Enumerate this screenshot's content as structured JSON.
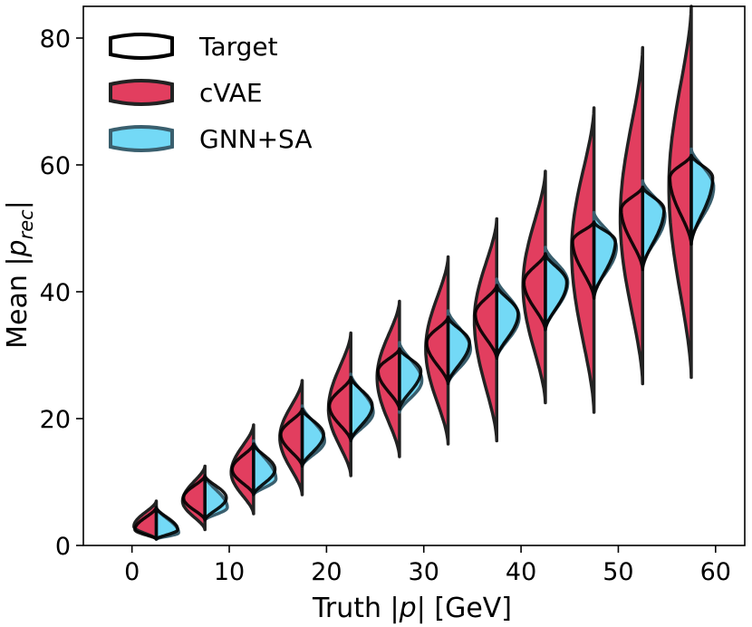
{
  "chart_data": {
    "type": "violin",
    "xlabel_parts": [
      "Truth |",
      "p",
      "| [GeV]"
    ],
    "ylabel_parts": [
      "Mean |",
      "p",
      "rec",
      "|"
    ],
    "xlim": [
      -5,
      63
    ],
    "ylim": [
      0,
      85
    ],
    "xticks": [
      0,
      10,
      20,
      30,
      40,
      50,
      60
    ],
    "yticks": [
      0,
      20,
      40,
      60,
      80
    ],
    "legend": {
      "placement": "top-left",
      "entries": [
        {
          "label": "Target",
          "fill": "#ffffff",
          "stroke": "#000000"
        },
        {
          "label": "cVAE",
          "fill": "#dc143c",
          "stroke": "#222222"
        },
        {
          "label": "GNN+SA",
          "fill": "#5ad2f4",
          "stroke": "#3a5f6e"
        }
      ]
    },
    "colors": {
      "target": "#000000",
      "cvae": "#dc143c",
      "gnn": "#5ad2f4",
      "gnn_edge": "#3a5f6e"
    },
    "violins": [
      {
        "x": 2.5,
        "cvae": {
          "min": 1.0,
          "max": 7.0,
          "mode": 3.0
        },
        "target": {
          "min": 1.0,
          "max": 6.0,
          "mode": 2.5
        },
        "gnn": {
          "min": 1.0,
          "max": 6.0,
          "mode": 2.0
        }
      },
      {
        "x": 7.5,
        "cvae": {
          "min": 2.5,
          "max": 12.5,
          "mode": 7.0
        },
        "target": {
          "min": 4.0,
          "max": 11.0,
          "mode": 7.5
        },
        "gnn": {
          "min": 4.0,
          "max": 11.0,
          "mode": 6.0
        }
      },
      {
        "x": 12.5,
        "cvae": {
          "min": 5.0,
          "max": 19.0,
          "mode": 11.5
        },
        "target": {
          "min": 8.0,
          "max": 16.0,
          "mode": 12.0
        },
        "gnn": {
          "min": 8.0,
          "max": 16.5,
          "mode": 10.5
        }
      },
      {
        "x": 17.5,
        "cvae": {
          "min": 8.0,
          "max": 26.0,
          "mode": 17.0
        },
        "target": {
          "min": 12.5,
          "max": 21.5,
          "mode": 17.5
        },
        "gnn": {
          "min": 12.5,
          "max": 22.0,
          "mode": 16.5
        }
      },
      {
        "x": 22.5,
        "cvae": {
          "min": 11.0,
          "max": 33.5,
          "mode": 21.5
        },
        "target": {
          "min": 16.5,
          "max": 26.5,
          "mode": 22.0
        },
        "gnn": {
          "min": 16.5,
          "max": 27.0,
          "mode": 21.0
        }
      },
      {
        "x": 27.5,
        "cvae": {
          "min": 14.0,
          "max": 38.5,
          "mode": 26.5
        },
        "target": {
          "min": 21.5,
          "max": 31.0,
          "mode": 27.5
        },
        "gnn": {
          "min": 21.0,
          "max": 32.0,
          "mode": 26.0
        }
      },
      {
        "x": 32.5,
        "cvae": {
          "min": 16.0,
          "max": 45.5,
          "mode": 31.0
        },
        "target": {
          "min": 25.5,
          "max": 36.0,
          "mode": 32.0
        },
        "gnn": {
          "min": 25.5,
          "max": 37.0,
          "mode": 31.0
        }
      },
      {
        "x": 37.5,
        "cvae": {
          "min": 16.5,
          "max": 51.5,
          "mode": 35.5
        },
        "target": {
          "min": 29.5,
          "max": 41.0,
          "mode": 36.5
        },
        "gnn": {
          "min": 29.5,
          "max": 42.0,
          "mode": 36.0
        }
      },
      {
        "x": 42.5,
        "cvae": {
          "min": 22.5,
          "max": 59.0,
          "mode": 41.0
        },
        "target": {
          "min": 34.0,
          "max": 46.0,
          "mode": 41.5
        },
        "gnn": {
          "min": 34.0,
          "max": 47.0,
          "mode": 41.5
        }
      },
      {
        "x": 47.5,
        "cvae": {
          "min": 21.0,
          "max": 69.0,
          "mode": 46.5
        },
        "target": {
          "min": 39.0,
          "max": 51.0,
          "mode": 48.0
        },
        "gnn": {
          "min": 39.5,
          "max": 52.5,
          "mode": 47.0
        }
      },
      {
        "x": 52.5,
        "cvae": {
          "min": 25.5,
          "max": 78.5,
          "mode": 51.5
        },
        "target": {
          "min": 43.5,
          "max": 56.5,
          "mode": 53.0
        },
        "gnn": {
          "min": 44.0,
          "max": 57.5,
          "mode": 52.0
        }
      },
      {
        "x": 57.5,
        "cvae": {
          "min": 26.5,
          "max": 85.0,
          "mode": 56.5
        },
        "target": {
          "min": 47.5,
          "max": 61.5,
          "mode": 58.0
        },
        "gnn": {
          "min": 48.0,
          "max": 62.5,
          "mode": 56.5
        }
      }
    ]
  }
}
